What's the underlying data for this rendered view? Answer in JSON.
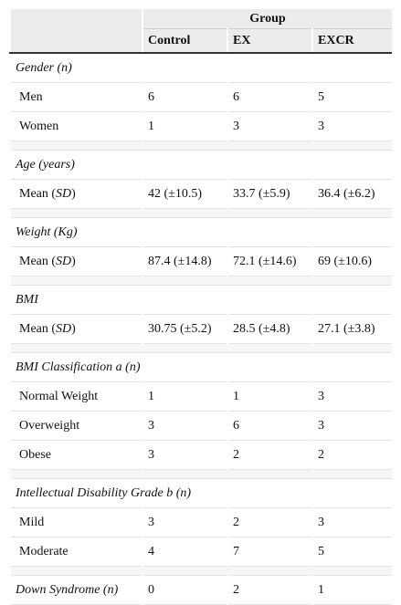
{
  "table": {
    "group_label": "Group",
    "columns": [
      "Control",
      "EX",
      "EXCR"
    ],
    "sections": [
      {
        "title": "Gender (n)",
        "rows": [
          {
            "label": "Men",
            "cells": [
              "6",
              "6",
              "5"
            ]
          },
          {
            "label": "Women",
            "cells": [
              "1",
              "3",
              "3"
            ]
          }
        ]
      },
      {
        "title": "Age (years)",
        "rows": [
          {
            "label_parts": [
              "Mean (",
              "SD",
              ")"
            ],
            "cells": [
              "42 (±10.5)",
              "33.7 (±5.9)",
              "36.4 (±6.2)"
            ]
          }
        ]
      },
      {
        "title": "Weight (Kg)",
        "rows": [
          {
            "label_parts": [
              "Mean (",
              "SD",
              ")"
            ],
            "cells": [
              "87.4 (±14.8)",
              "72.1 (±14.6)",
              "69 (±10.6)"
            ]
          }
        ]
      },
      {
        "title": "BMI",
        "rows": [
          {
            "label_parts": [
              "Mean (",
              "SD",
              ")"
            ],
            "cells": [
              "30.75 (±5.2)",
              "28.5 (±4.8)",
              "27.1 (±3.8)"
            ]
          }
        ]
      },
      {
        "title": "BMI Classification a (n)",
        "rows": [
          {
            "label": "Normal Weight",
            "cells": [
              "1",
              "1",
              "3"
            ]
          },
          {
            "label": "Overweight",
            "cells": [
              "3",
              "6",
              "3"
            ]
          },
          {
            "label": "Obese",
            "cells": [
              "3",
              "2",
              "2"
            ]
          }
        ]
      },
      {
        "title": "Intellectual Disability Grade b (n)",
        "rows": [
          {
            "label": "Mild",
            "cells": [
              "3",
              "2",
              "3"
            ]
          },
          {
            "label": "Moderate",
            "cells": [
              "4",
              "7",
              "5"
            ]
          }
        ]
      },
      {
        "title": "Down Syndrome (n)",
        "cells": [
          "0",
          "2",
          "1"
        ]
      }
    ]
  }
}
